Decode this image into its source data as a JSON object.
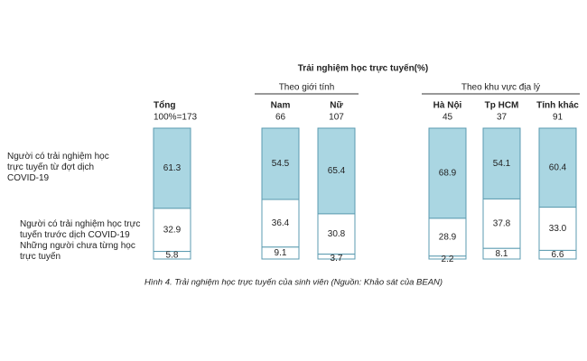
{
  "chart_data": {
    "type": "stacked-bar",
    "title": "Trải nghiệm học trực tuyến(%)",
    "categories": [
      "Tổng",
      "Nam",
      "Nữ",
      "Hà Nội",
      "Tp HCM",
      "Tỉnh khác"
    ],
    "category_groups": [
      null,
      "Theo giới tính",
      "Theo giới tính",
      "Theo khu vực địa lý",
      "Theo khu vực địa lý",
      "Theo khu vực địa lý"
    ],
    "sample_sizes": [
      {
        "value": 173,
        "label": "100%=173"
      },
      66,
      107,
      45,
      37,
      91
    ],
    "series": [
      {
        "name": "Người có trải nghiệm học trực tuyến từ đợt dịch COVID-19",
        "color": "#aad6e2",
        "values": [
          61.3,
          54.5,
          65.4,
          68.9,
          54.1,
          60.4
        ]
      },
      {
        "name": "Người có trải nghiệm học trực tuyến trước dịch COVID-19",
        "color": "#ffffff",
        "values": [
          32.9,
          36.4,
          30.8,
          28.9,
          37.8,
          33.0
        ],
        "value_labels": [
          "32.9",
          "36.4",
          "30.8",
          "28.9",
          "37.8",
          "33.0"
        ]
      },
      {
        "name": "Những người chưa từng học trực tuyến",
        "color": "#ffffff",
        "values": [
          5.8,
          9.1,
          3.7,
          2.2,
          8.1,
          6.6
        ]
      }
    ],
    "caption": "Hình 4.  Trải nghiệm học trực tuyến của sinh viên (Nguồn: Khảo sát của BEAN)"
  }
}
